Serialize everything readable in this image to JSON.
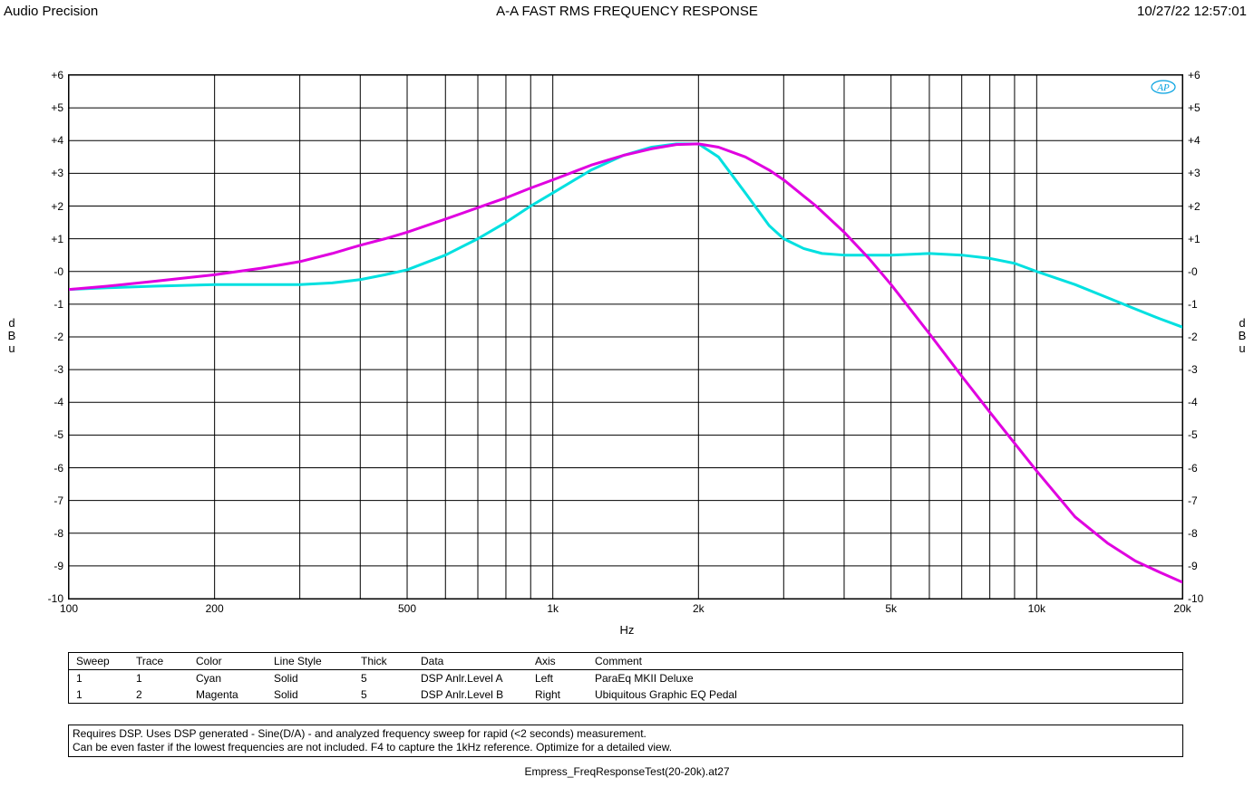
{
  "header": {
    "left": "Audio Precision",
    "center": "A-A FAST RMS FREQUENCY RESPONSE",
    "right": "10/27/22 12:57:01"
  },
  "chart": {
    "type": "line",
    "x_axis": {
      "label": "Hz",
      "scale": "log",
      "min": 100,
      "max": 20000,
      "ticks": [
        {
          "v": 100,
          "label": "100"
        },
        {
          "v": 200,
          "label": "200"
        },
        {
          "v": 500,
          "label": "500"
        },
        {
          "v": 1000,
          "label": "1k"
        },
        {
          "v": 2000,
          "label": "2k"
        },
        {
          "v": 5000,
          "label": "5k"
        },
        {
          "v": 10000,
          "label": "10k"
        },
        {
          "v": 20000,
          "label": "20k"
        }
      ],
      "minor_ticks": [
        300,
        400,
        600,
        700,
        800,
        900,
        3000,
        4000,
        6000,
        7000,
        8000,
        9000
      ]
    },
    "y_axis": {
      "label_left": "d\nB\nu",
      "label_right": "d\nB\nu",
      "scale": "linear",
      "min": -10,
      "max": 6,
      "tick_step": 1,
      "tick_format": "signed"
    },
    "grid_color": "#000000",
    "grid_width": 1,
    "background_color": "#ffffff",
    "line_width": 3,
    "logo_text": "AP",
    "logo_color": "#00a0e0",
    "series": [
      {
        "name": "DSP Anlr.Level A",
        "color": "#00e0e0",
        "points": [
          [
            100,
            -0.55
          ],
          [
            120,
            -0.5
          ],
          [
            150,
            -0.45
          ],
          [
            200,
            -0.4
          ],
          [
            250,
            -0.4
          ],
          [
            300,
            -0.4
          ],
          [
            350,
            -0.35
          ],
          [
            400,
            -0.25
          ],
          [
            450,
            -0.1
          ],
          [
            500,
            0.05
          ],
          [
            600,
            0.5
          ],
          [
            700,
            1.0
          ],
          [
            800,
            1.5
          ],
          [
            900,
            2.0
          ],
          [
            1000,
            2.4
          ],
          [
            1200,
            3.1
          ],
          [
            1400,
            3.55
          ],
          [
            1600,
            3.8
          ],
          [
            1800,
            3.9
          ],
          [
            2000,
            3.9
          ],
          [
            2200,
            3.5
          ],
          [
            2500,
            2.4
          ],
          [
            2800,
            1.4
          ],
          [
            3000,
            1.0
          ],
          [
            3300,
            0.7
          ],
          [
            3600,
            0.55
          ],
          [
            4000,
            0.5
          ],
          [
            5000,
            0.5
          ],
          [
            6000,
            0.55
          ],
          [
            7000,
            0.5
          ],
          [
            8000,
            0.4
          ],
          [
            9000,
            0.25
          ],
          [
            10000,
            0.0
          ],
          [
            12000,
            -0.4
          ],
          [
            14000,
            -0.8
          ],
          [
            16000,
            -1.15
          ],
          [
            18000,
            -1.45
          ],
          [
            20000,
            -1.7
          ]
        ]
      },
      {
        "name": "DSP Anlr.Level B",
        "color": "#e000e0",
        "points": [
          [
            100,
            -0.55
          ],
          [
            120,
            -0.45
          ],
          [
            150,
            -0.3
          ],
          [
            200,
            -0.1
          ],
          [
            250,
            0.1
          ],
          [
            300,
            0.3
          ],
          [
            350,
            0.55
          ],
          [
            400,
            0.8
          ],
          [
            450,
            1.0
          ],
          [
            500,
            1.2
          ],
          [
            600,
            1.6
          ],
          [
            700,
            1.95
          ],
          [
            800,
            2.25
          ],
          [
            900,
            2.55
          ],
          [
            1000,
            2.8
          ],
          [
            1200,
            3.25
          ],
          [
            1400,
            3.55
          ],
          [
            1600,
            3.75
          ],
          [
            1800,
            3.88
          ],
          [
            2000,
            3.9
          ],
          [
            2200,
            3.8
          ],
          [
            2500,
            3.5
          ],
          [
            2800,
            3.1
          ],
          [
            3000,
            2.8
          ],
          [
            3500,
            2.0
          ],
          [
            4000,
            1.2
          ],
          [
            4500,
            0.4
          ],
          [
            5000,
            -0.4
          ],
          [
            6000,
            -1.9
          ],
          [
            7000,
            -3.2
          ],
          [
            8000,
            -4.3
          ],
          [
            9000,
            -5.25
          ],
          [
            10000,
            -6.1
          ],
          [
            12000,
            -7.5
          ],
          [
            14000,
            -8.3
          ],
          [
            16000,
            -8.85
          ],
          [
            18000,
            -9.2
          ],
          [
            20000,
            -9.5
          ]
        ]
      }
    ]
  },
  "legend": {
    "columns": [
      "Sweep",
      "Trace",
      "Color",
      "Line Style",
      "Thick",
      "Data",
      "Axis",
      "Comment"
    ],
    "rows": [
      [
        "1",
        "1",
        "Cyan",
        "Solid",
        "5",
        "DSP Anlr.Level A",
        "Left",
        "ParaEq MKII Deluxe"
      ],
      [
        "1",
        "2",
        "Magenta",
        "Solid",
        "5",
        "DSP Anlr.Level B",
        "Right",
        "Ubiquitous Graphic EQ Pedal"
      ]
    ]
  },
  "notes": {
    "line1": "Requires DSP.  Uses DSP generated - Sine(D/A) - and analyzed frequency sweep for rapid (<2 seconds) measurement.",
    "line2": "Can be even faster if the lowest frequencies are not included. F4 to capture the 1kHz reference. Optimize for a detailed view."
  },
  "footer": "Empress_FreqResponseTest(20-20k).at27"
}
